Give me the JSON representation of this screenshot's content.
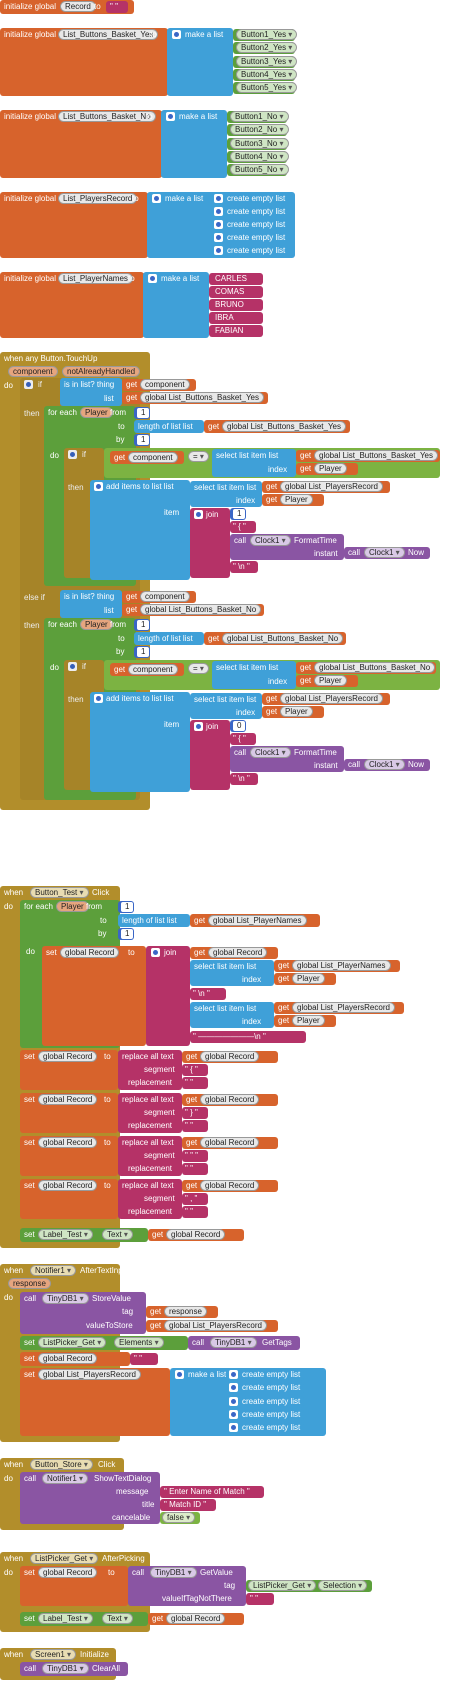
{
  "colors": {
    "variable": "#d7632c",
    "list": "#3fa0d8",
    "control": "#b28e2b",
    "logic": "#7cb342",
    "text": "#b53267",
    "method": "#8a55a3",
    "component": "#5c9f3b"
  },
  "g1": {
    "init": "initialize global",
    "name": "Record",
    "to": "to",
    "val": "\" \""
  },
  "g2": {
    "init": "initialize global",
    "name": "List_Buttons_Basket_Yes",
    "to": "to",
    "make": "make a list",
    "items": [
      "Button1_Yes",
      "Button2_Yes",
      "Button3_Yes",
      "Button4_Yes",
      "Button5_Yes"
    ]
  },
  "g3": {
    "init": "initialize global",
    "name": "List_Buttons_Basket_No",
    "to": "to",
    "make": "make a list",
    "items": [
      "Button1_No",
      "Button2_No",
      "Button3_No",
      "Button4_No",
      "Button5_No"
    ]
  },
  "g4": {
    "init": "initialize global",
    "name": "List_PlayersRecord",
    "to": "to",
    "make": "make a list",
    "items": [
      "create empty list",
      "create empty list",
      "create empty list",
      "create empty list",
      "create empty list"
    ]
  },
  "g5": {
    "init": "initialize global",
    "name": "List_PlayerNames",
    "to": "to",
    "make": "make a list",
    "items": [
      "CARLES",
      "COMAS",
      "BRUNO",
      "IBRA",
      "FABIAN"
    ]
  },
  "ev1": {
    "head": "when any Button.TouchUp",
    "p1": "component",
    "p2": "notAlreadyHandled",
    "do": "do",
    "if": "if",
    "then": "then",
    "elseif": "else if",
    "isin": "is in list? thing",
    "list": "list",
    "get": "get",
    "component": "component",
    "glyes": "global List_Buttons_Basket_Yes",
    "glno": "global List_Buttons_Basket_No",
    "foreach": "for each",
    "player": "Player",
    "from": "from",
    "to": "to",
    "by": "by",
    "one": "1",
    "lengthof": "length of list  list",
    "select": "select list item  list",
    "index": "index",
    "eq": "=",
    "additems": "add items to list  list",
    "item": "item",
    "join": "join",
    "glrec": "global List_PlayersRecord",
    "jyes": "1",
    "jno": "0",
    "brace": "\" { \"",
    "call": "call",
    "clock": "Clock1",
    "format": "FormatTime",
    "instant": "instant",
    "now": "Now",
    "nl": "\" \\n \""
  },
  "ev2": {
    "when": "when",
    "btn": "Button_Test",
    "click": "Click",
    "do": "do",
    "foreach": "for each",
    "player": "Player",
    "from": "from",
    "to": "to",
    "by": "by",
    "one": "1",
    "lengthof": "length of list  list",
    "get": "get",
    "glnames": "global List_PlayerNames",
    "set": "set",
    "grec": "global Record",
    "join": "join",
    "select": "select list item  list",
    "index": "index",
    "glrec": "global List_PlayersRecord",
    "nl": "\" \\n \"",
    "line": "\" ———————\\n \"",
    "replace": "replace all text",
    "segment": "segment",
    "replacement": "replacement",
    "reps": [
      [
        "\" { \"",
        "\" \""
      ],
      [
        "\" } \"",
        "\" \""
      ],
      [
        "\" \" \"",
        "\" \""
      ],
      [
        "\" , \"",
        "\" \""
      ]
    ],
    "label": "Label_Test",
    "text": "Text"
  },
  "ev3": {
    "when": "when",
    "comp": "Notifier1",
    "evt": "AfterTextInput",
    "param": "response",
    "do": "do",
    "call": "call",
    "db": "TinyDB1",
    "store": "StoreValue",
    "tag": "tag",
    "get": "get",
    "response": "response",
    "vts": "valueToStore",
    "glrec": "global List_PlayersRecord",
    "set": "set",
    "lp": "ListPicker_Get",
    "elements": "Elements",
    "gettags": "GetTags",
    "grec": "global Record",
    "empty": "\" \"",
    "make": "make a list",
    "items": [
      "create empty list",
      "create empty list",
      "create empty list",
      "create empty list",
      "create empty list"
    ]
  },
  "ev4": {
    "when": "when",
    "btn": "Button_Store",
    "click": "Click",
    "do": "do",
    "call": "call",
    "comp": "Notifier1",
    "method": "ShowTextDialog",
    "message": "message",
    "msgval": "\" Enter Name of Match \"",
    "title": "title",
    "titleval": "\" Match ID \"",
    "cancelable": "cancelable",
    "false": "false"
  },
  "ev5": {
    "when": "when",
    "comp": "ListPicker_Get",
    "evt": "AfterPicking",
    "do": "do",
    "set": "set",
    "grec": "global Record",
    "to": "to",
    "call": "call",
    "db": "TinyDB1",
    "getvalue": "GetValue",
    "tag": "tag",
    "lp": "ListPicker_Get",
    "selection": "Selection",
    "vint": "valueIfTagNotThere",
    "empty": "\" \"",
    "label": "Label_Test",
    "text": "Text",
    "get": "get"
  },
  "ev6": {
    "when": "when",
    "comp": "Screen1",
    "evt": "Initialize",
    "call": "call",
    "db": "TinyDB1",
    "method": "ClearAll"
  }
}
